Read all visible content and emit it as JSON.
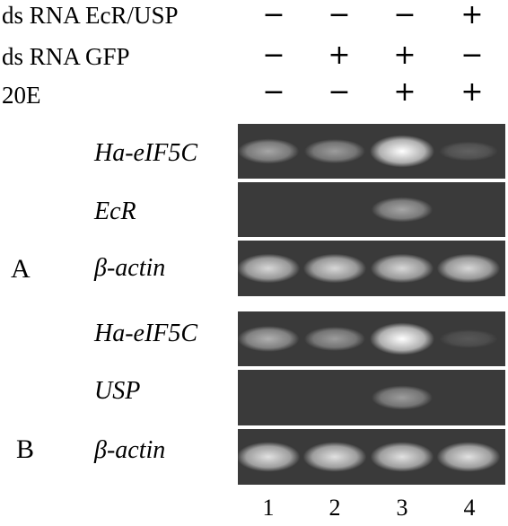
{
  "treatments": [
    {
      "label": "ds RNA EcR/USP",
      "signs": [
        "−",
        "−",
        "−",
        "+"
      ]
    },
    {
      "label": "ds RNA GFP",
      "signs": [
        "−",
        "+",
        "+",
        "−"
      ]
    },
    {
      "label": "20E",
      "signs": [
        "−",
        "−",
        "+",
        "+"
      ]
    }
  ],
  "panels": [
    {
      "letter": "A",
      "rows": [
        {
          "gene": "Ha-eIF5C",
          "intensity": [
            0.55,
            0.5,
            1.0,
            0.2
          ]
        },
        {
          "gene": "EcR",
          "intensity": [
            0.0,
            0.0,
            0.55,
            0.0
          ]
        },
        {
          "gene": "β-actin",
          "intensity": [
            0.8,
            0.8,
            0.8,
            0.8
          ]
        }
      ]
    },
    {
      "letter": "B",
      "rows": [
        {
          "gene": "Ha-eIF5C",
          "intensity": [
            0.6,
            0.5,
            1.0,
            0.15
          ]
        },
        {
          "gene": "USP",
          "intensity": [
            0.0,
            0.0,
            0.5,
            0.0
          ]
        },
        {
          "gene": "β-actin",
          "intensity": [
            0.85,
            0.85,
            0.85,
            0.85
          ]
        }
      ]
    }
  ],
  "lanes": [
    "1",
    "2",
    "3",
    "4"
  ],
  "colors": {
    "gel_background": "#3a3a3a",
    "band": "#ffffff",
    "text": "#000000"
  }
}
